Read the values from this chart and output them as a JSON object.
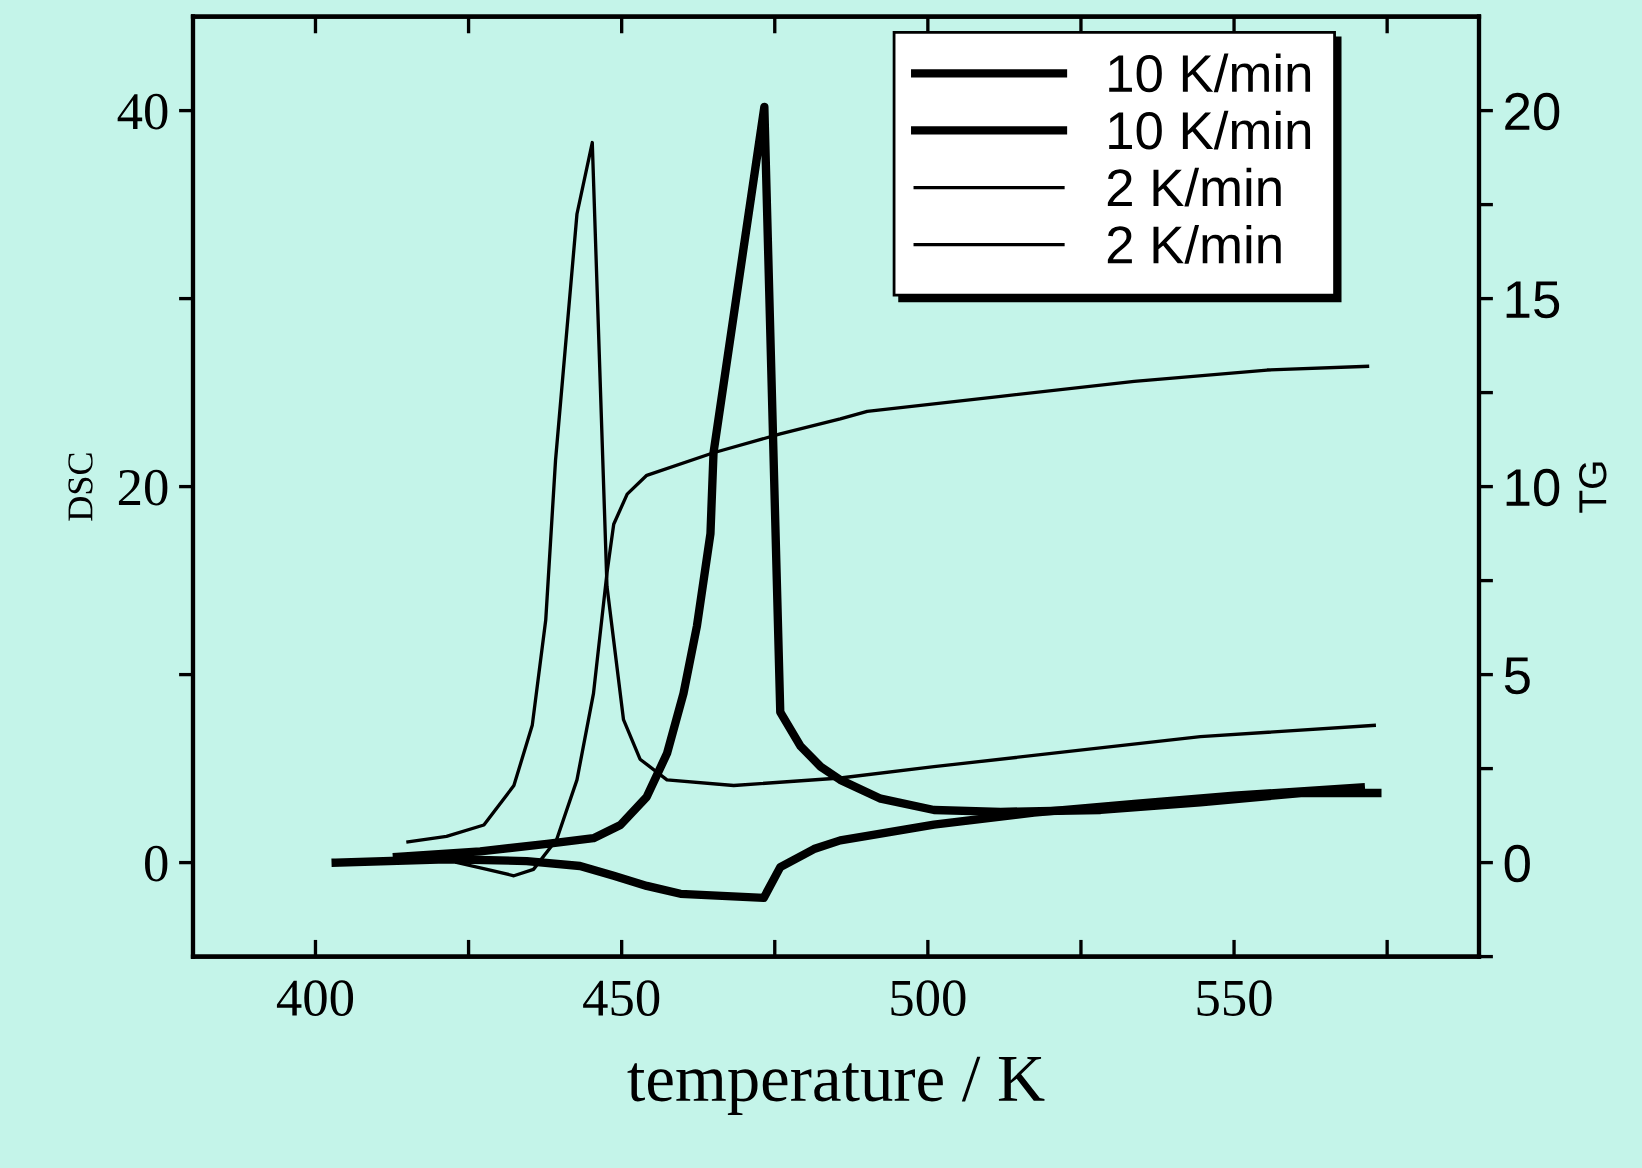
{
  "chart_data": {
    "type": "line",
    "xlabel": "temperature / K",
    "ylabel": "DSC",
    "y2label": "TG",
    "xlim": [
      380,
      590
    ],
    "xticks": [
      400,
      {
        "value": 425,
        "label": null
      },
      450,
      {
        "value": 475,
        "label": null
      },
      500,
      {
        "value": 525,
        "label": null
      },
      550,
      {
        "value": 575,
        "label": null
      }
    ],
    "ylim": [
      -5,
      45
    ],
    "yticks": [
      0,
      {
        "value": 10,
        "label": null
      },
      20,
      {
        "value": 30,
        "label": null
      },
      40
    ],
    "y2lim": [
      -2.5,
      22.5
    ],
    "y2ticks": [
      {
        "value": -2.5,
        "label": null
      },
      0,
      {
        "value": 2.5,
        "label": null
      },
      5,
      {
        "value": 7.5,
        "label": null
      },
      10,
      {
        "value": 12.5,
        "label": null
      },
      15,
      {
        "value": 17.5,
        "label": null
      },
      20
    ],
    "grid": false,
    "legend": "top right",
    "marker": "none",
    "line_style": "solid",
    "series": [
      {
        "name": "10 K/min",
        "color": "#000000",
        "x": [
          413.3,
          426.9,
          437.8,
          445.4,
          449.8,
          454.1,
          457.4,
          460.1,
          462.3,
          464.5,
          465.0,
          473.3,
          475.9,
          479.2,
          482.5,
          485.7,
          492.3,
          501.0,
          511.9,
          528.2,
          544.5,
          560.9,
          573.4
        ],
        "values": [
          0.3,
          0.6,
          1.0,
          1.3,
          2.0,
          3.5,
          5.8,
          9.0,
          12.6,
          17.5,
          21.8,
          40.2,
          8.0,
          6.2,
          5.1,
          4.4,
          3.4,
          2.8,
          2.7,
          2.8,
          3.2,
          3.7,
          3.7
        ]
      },
      {
        "name": "10 K/min",
        "color": "#000000",
        "axis": "y2",
        "x": [
          403.3,
          421.4,
          434.5,
          443.2,
          448.7,
          454.1,
          459.6,
          473.2,
          475.9,
          481.4,
          485.7,
          490.1,
          501.0,
          517.3,
          533.7,
          550.0,
          570.7
        ],
        "values": [
          0,
          0.09,
          0.04,
          -0.09,
          -0.35,
          -0.62,
          -0.83,
          -0.94,
          -0.12,
          0.36,
          0.59,
          0.71,
          1.01,
          1.33,
          1.56,
          1.78,
          2.0
        ]
      },
      {
        "name": "2 K/min",
        "color": "#000000",
        "x": [
          415.1,
          421.4,
          427.5,
          432.4,
          435.4,
          437.6,
          439.2,
          442.7,
          445.2,
          447.6,
          450.3,
          453.0,
          457.4,
          468.3,
          485.7,
          501.0,
          522.7,
          544.5,
          572.9
        ],
        "values": [
          1.1,
          1.4,
          2.0,
          4.1,
          7.3,
          12.9,
          21.4,
          34.5,
          38.3,
          14.7,
          7.6,
          5.5,
          4.4,
          4.1,
          4.5,
          5.1,
          5.9,
          6.7,
          7.3
        ]
      },
      {
        "name": "2 K/min",
        "color": "#000000",
        "axis": "y2",
        "x": [
          423.1,
          428.0,
          432.4,
          435.6,
          439.4,
          442.7,
          445.4,
          447.6,
          448.7,
          450.9,
          454.1,
          465.0,
          475.9,
          485.7,
          490.1,
          511.9,
          533.7,
          555.4,
          571.8
        ],
        "values": [
          0,
          -0.18,
          -0.35,
          -0.18,
          0.62,
          2.2,
          4.5,
          7.7,
          9.0,
          9.8,
          10.3,
          10.9,
          11.4,
          11.8,
          12.0,
          12.4,
          12.8,
          13.1,
          13.2
        ]
      }
    ]
  }
}
